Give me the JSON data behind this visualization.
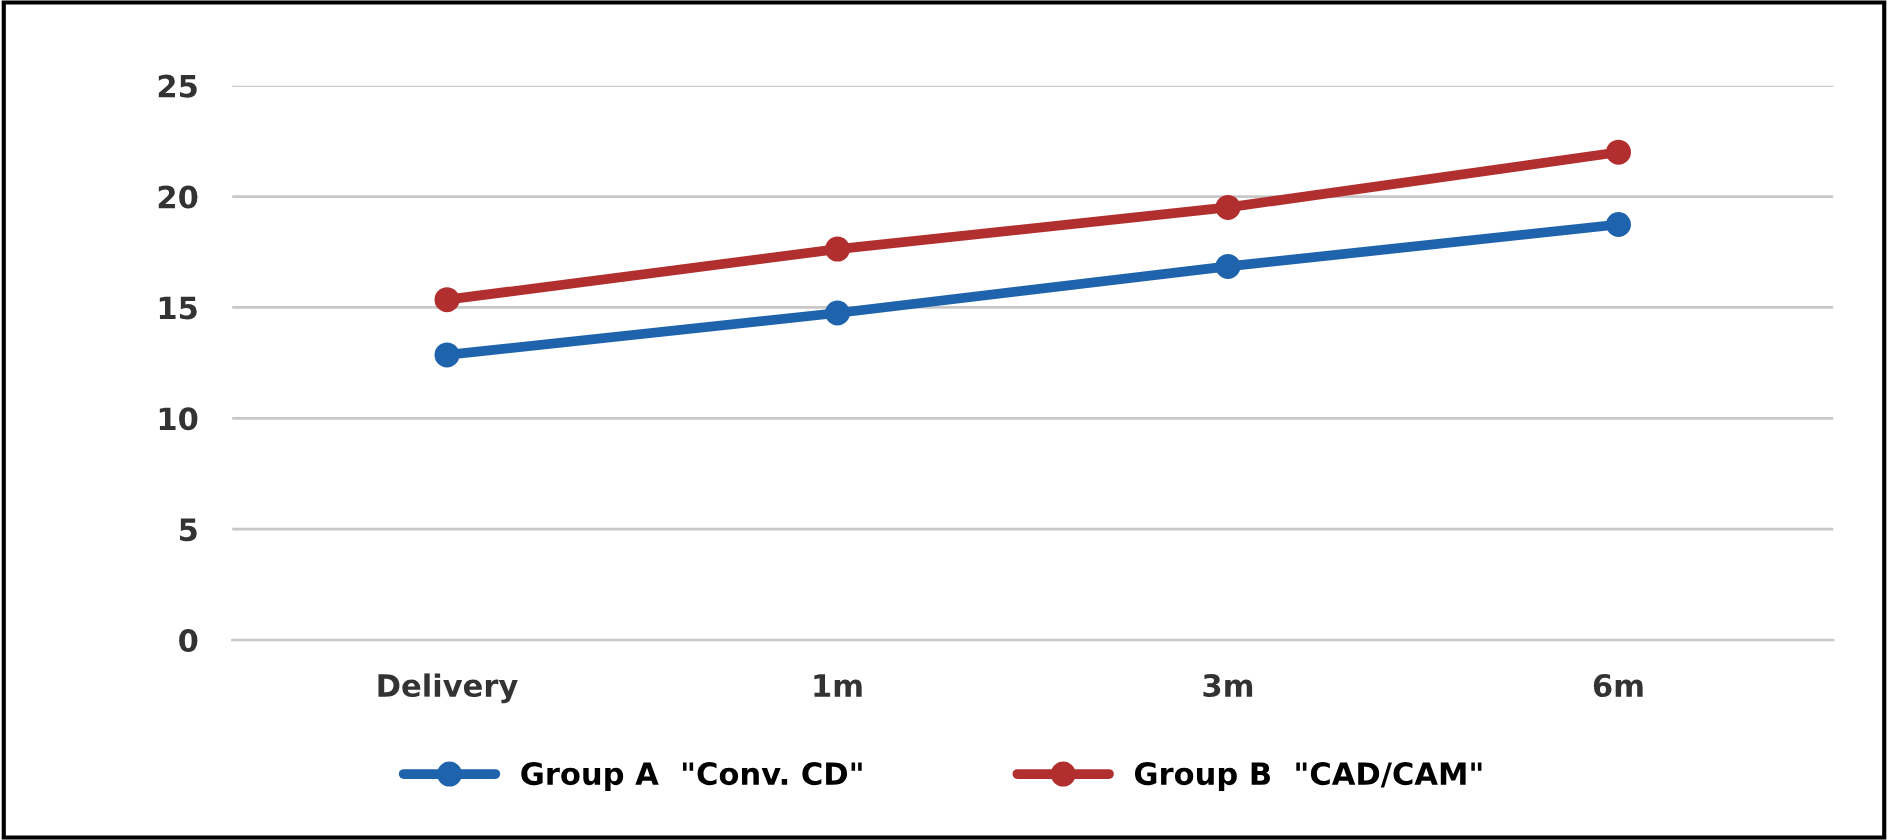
{
  "chart_data": {
    "type": "line",
    "categories": [
      "Delivery",
      "1m",
      "3m",
      "6m"
    ],
    "series": [
      {
        "name": "Group A  \"Conv. CD\"",
        "color": "#1f63ad",
        "values": [
          12.86,
          14.75,
          16.85,
          18.74
        ]
      },
      {
        "name": "Group B  \"CAD/CAM\"",
        "color": "#b22f2f",
        "values": [
          15.35,
          17.63,
          19.51,
          22.0
        ]
      }
    ],
    "ylim": [
      0,
      25
    ],
    "yticks": [
      0,
      5,
      10,
      15,
      20,
      25
    ],
    "grid": "y",
    "legend": "bottom",
    "marker": "circle",
    "line_style": "solid"
  }
}
